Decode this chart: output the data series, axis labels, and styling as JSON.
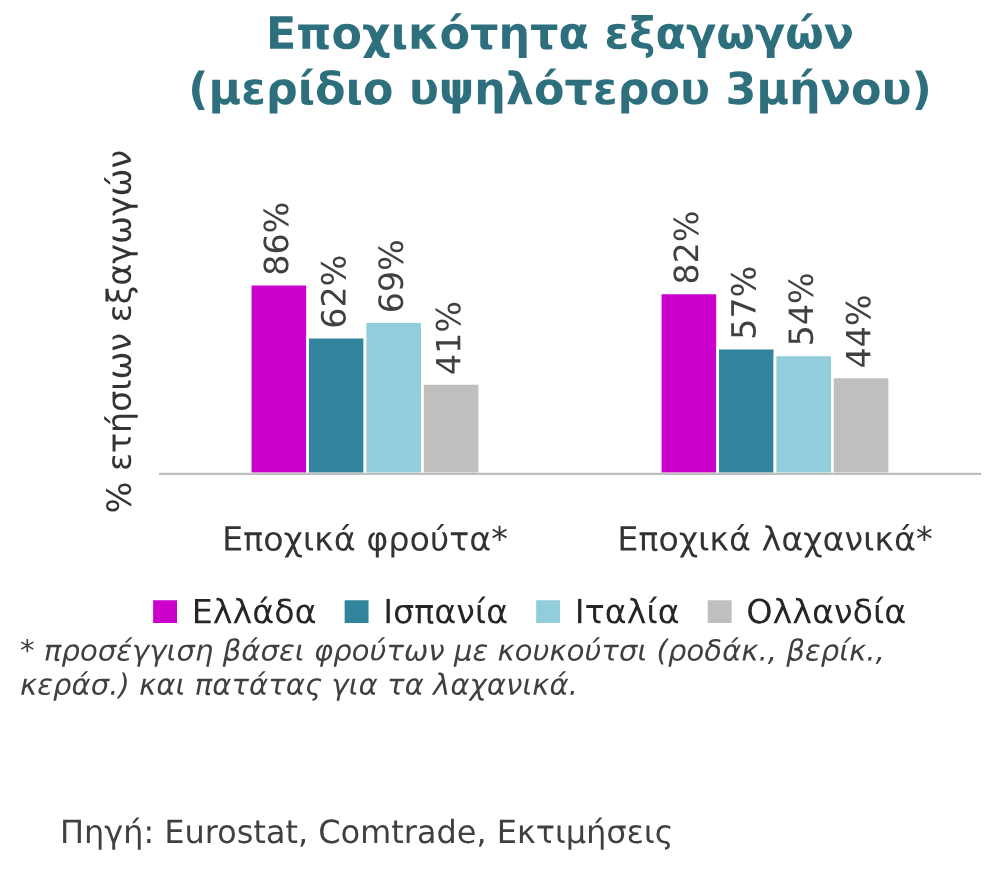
{
  "chart_data": {
    "type": "bar",
    "title": "Εποχικότητα εξαγωγών\n(μερίδιο υψηλότερου 3μήνου)",
    "ylabel": "% ετήσιων εξαγωγών",
    "categories": [
      "Εποχικά φρούτα*",
      "Εποχικά λαχανικά*"
    ],
    "series": [
      {
        "name": "Ελλάδα",
        "color": "#cc00cc",
        "values": [
          86,
          82
        ],
        "value_labels": [
          "86%",
          "82%"
        ]
      },
      {
        "name": "Ισπανία",
        "color": "#31849b",
        "values": [
          62,
          57
        ],
        "value_labels": [
          "62%",
          "57%"
        ]
      },
      {
        "name": "Ιταλία",
        "color": "#92cddc",
        "values": [
          69,
          54
        ],
        "value_labels": [
          "69%",
          "54%"
        ]
      },
      {
        "name": "Ολλανδία",
        "color": "#bfbfbf",
        "values": [
          41,
          44
        ],
        "value_labels": [
          "41%",
          "44%"
        ]
      }
    ],
    "legend": "bottom",
    "grid": false,
    "annotations": [
      "* προσέγγιση βάσει φρούτων με κουκούτσι (ροδάκ., βερίκ., κεράσ.) και πατάτας για τα λαχανικά.",
      "Πηγή: Eurostat, Comtrade, Εκτιμήσεις"
    ]
  }
}
